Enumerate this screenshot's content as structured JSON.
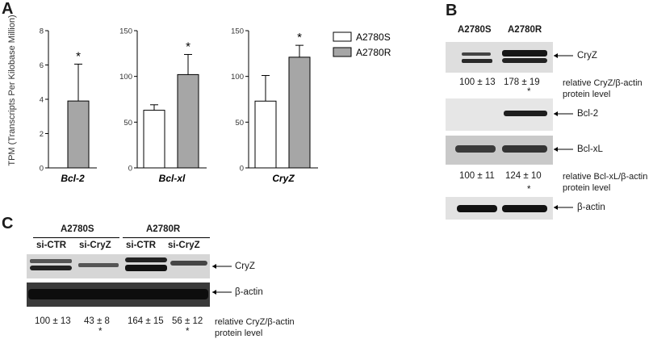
{
  "panels": {
    "a": "A",
    "b": "B",
    "c": "C"
  },
  "panelA": {
    "ylabel": "TPM (Transcripts Per Kilobase Million)",
    "legend": [
      {
        "name": "A2780S",
        "color": "#ffffff"
      },
      {
        "name": "A2780R",
        "color": "#a6a6a6"
      }
    ],
    "star": "*"
  },
  "chart_data": [
    {
      "type": "bar",
      "title": "",
      "xlabel": "Bcl-2",
      "ylabel": "TPM (Transcripts Per Kilobase Million)",
      "ylim": [
        0,
        8
      ],
      "yticks": [
        0,
        2,
        4,
        6,
        8
      ],
      "series": [
        {
          "name": "A2780S",
          "values": [
            0
          ],
          "error": [
            0
          ]
        },
        {
          "name": "A2780R",
          "values": [
            3.9
          ],
          "error": [
            2.15
          ]
        }
      ],
      "significant": [
        "A2780R"
      ]
    },
    {
      "type": "bar",
      "title": "",
      "xlabel": "Bcl-xl",
      "ylabel": "",
      "ylim": [
        0,
        150
      ],
      "yticks": [
        0,
        50,
        100,
        150
      ],
      "series": [
        {
          "name": "A2780S",
          "values": [
            63
          ],
          "error": [
            6
          ]
        },
        {
          "name": "A2780R",
          "values": [
            102
          ],
          "error": [
            22
          ]
        }
      ],
      "significant": [
        "A2780R"
      ]
    },
    {
      "type": "bar",
      "title": "",
      "xlabel": "CryZ",
      "ylabel": "",
      "ylim": [
        0,
        150
      ],
      "yticks": [
        0,
        50,
        100,
        150
      ],
      "series": [
        {
          "name": "A2780S",
          "values": [
            73
          ],
          "error": [
            28
          ]
        },
        {
          "name": "A2780R",
          "values": [
            121
          ],
          "error": [
            13
          ]
        }
      ],
      "significant": [
        "A2780R"
      ]
    }
  ],
  "panelB": {
    "col_headers": [
      "A2780S",
      "A2780R"
    ],
    "bands": [
      "CryZ",
      "Bcl-2",
      "Bcl-xL",
      "β-actin"
    ],
    "cryz_values": [
      "100 ± 13",
      "178 ± 19"
    ],
    "cryz_star": "*",
    "cryz_note": [
      "relative CryZ/β-actin",
      "protein level"
    ],
    "bclxl_values": [
      "100 ± 11",
      "124 ± 10"
    ],
    "bclxl_star": "*",
    "bclxl_note": [
      "relative Bcl-xL/β-actin",
      "protein level"
    ]
  },
  "panelC": {
    "groups": [
      "A2780S",
      "A2780R"
    ],
    "lanes": [
      "si-CTR",
      "si-CryZ",
      "si-CTR",
      "si-CryZ"
    ],
    "bands": [
      "CryZ",
      "β-actin"
    ],
    "values": [
      "100 ± 13",
      "43 ± 8",
      "164 ± 15",
      "56 ± 12"
    ],
    "stars": [
      "*",
      "*"
    ],
    "note": [
      "relative CryZ/β-actin",
      "protein level"
    ]
  }
}
